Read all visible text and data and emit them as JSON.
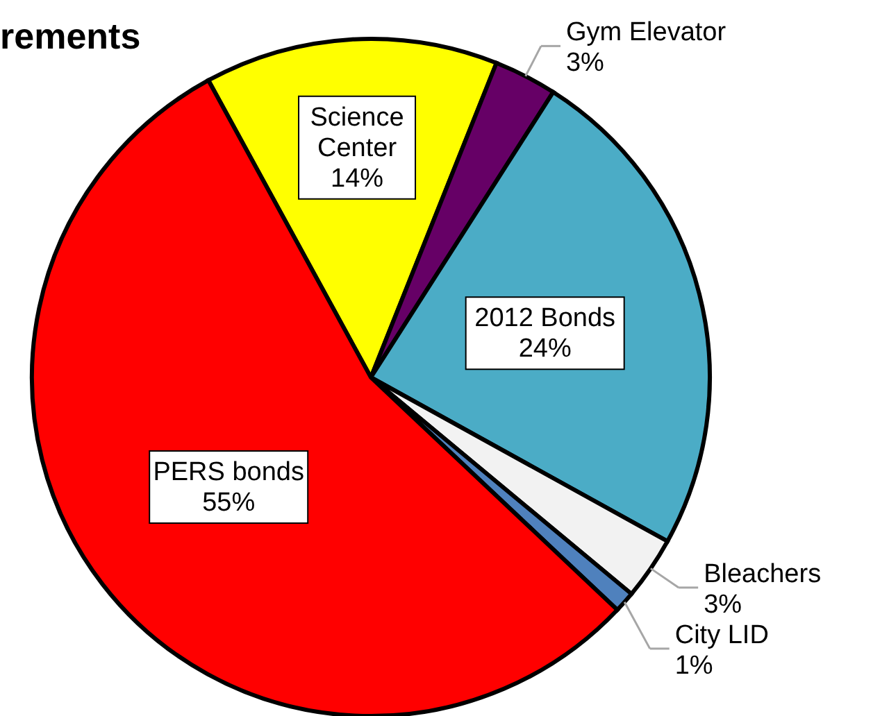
{
  "chart_data": {
    "type": "pie",
    "title": "rements",
    "categories": [
      "Science Center",
      "Gym Elevator",
      "2012 Bonds",
      "Bleachers",
      "City LID",
      "PERS bonds"
    ],
    "values": [
      14,
      3,
      24,
      3,
      1,
      55
    ],
    "value_labels": [
      "14%",
      "3%",
      "24%",
      "3%",
      "1%",
      "55%"
    ],
    "colors": [
      "#ffff00",
      "#660066",
      "#4bacc6",
      "#f2f2f2",
      "#4f81bd",
      "#ff0000"
    ]
  }
}
